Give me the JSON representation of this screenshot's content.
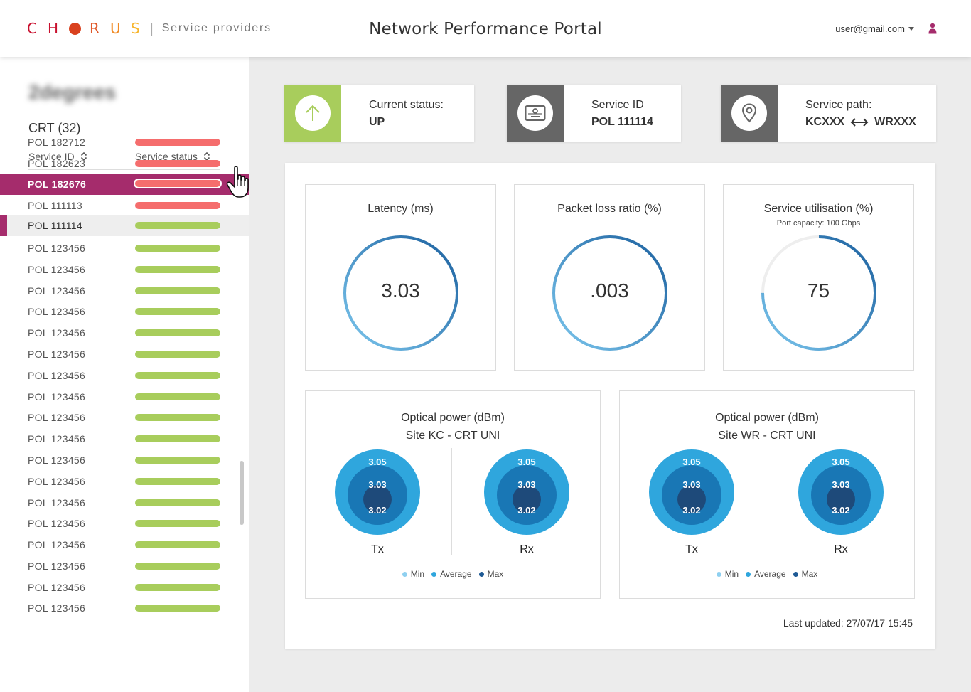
{
  "header": {
    "logo_letters": [
      "C",
      "H",
      "R",
      "U",
      "S"
    ],
    "logo_colors": [
      "#c8102e",
      "#c8102e",
      "#e0592a",
      "#f08a24",
      "#f7b52c",
      "#f7c948"
    ],
    "logo_dot_color": "#d9411e",
    "logo_separator": "|",
    "logo_subtitle": "Service providers",
    "title": "Network Performance Portal",
    "user_email": "user@gmail.com",
    "user_icon": "person-icon"
  },
  "sidebar": {
    "org_name": "2degrees",
    "group_label": "CRT (32)",
    "col_service_id": "Service ID",
    "col_service_status": "Service status",
    "rows": [
      {
        "id": "POL 182712",
        "status": "down"
      },
      {
        "id": "POL 182623",
        "status": "down"
      },
      {
        "id": "POL 182676",
        "status": "down"
      },
      {
        "id": "POL 111113",
        "status": "down"
      },
      {
        "id": "POL 111114",
        "status": "up"
      },
      {
        "id": "POL 123456",
        "status": "up"
      },
      {
        "id": "POL 123456",
        "status": "up"
      },
      {
        "id": "POL 123456",
        "status": "up"
      },
      {
        "id": "POL 123456",
        "status": "up"
      },
      {
        "id": "POL 123456",
        "status": "up"
      },
      {
        "id": "POL 123456",
        "status": "up"
      },
      {
        "id": "POL 123456",
        "status": "up"
      },
      {
        "id": "POL 123456",
        "status": "up"
      },
      {
        "id": "POL 123456",
        "status": "up"
      },
      {
        "id": "POL 123456",
        "status": "up"
      },
      {
        "id": "POL 123456",
        "status": "up"
      },
      {
        "id": "POL 123456",
        "status": "up"
      },
      {
        "id": "POL 123456",
        "status": "up"
      },
      {
        "id": "POL 123456",
        "status": "up"
      },
      {
        "id": "POL 123456",
        "status": "up"
      },
      {
        "id": "POL 123456",
        "status": "up"
      },
      {
        "id": "POL 123456",
        "status": "up"
      },
      {
        "id": "POL 123456",
        "status": "up"
      }
    ],
    "status_colors": {
      "down": "#f56d6d",
      "up": "#a8cd5c"
    },
    "hovered_row": "POL 182676",
    "active_row": "POL 111114"
  },
  "status_cards": {
    "current_status": {
      "label": "Current status:",
      "value": "UP",
      "icon": "arrow-up-icon",
      "color": "#a8cd5c"
    },
    "service_id": {
      "label": "Service ID",
      "value": "POL 111114",
      "icon": "id-card-icon",
      "color": "#666666"
    },
    "service_path": {
      "label": "Service path:",
      "from": "KCXXX",
      "to": "WRXXX",
      "icon": "location-pin-icon",
      "color": "#666666"
    }
  },
  "gauges": [
    {
      "title": "Latency (ms)",
      "subtitle": "",
      "value": "3.03",
      "fill_fraction": 1.0
    },
    {
      "title": "Packet loss ratio (%)",
      "subtitle": "",
      "value": ".003",
      "fill_fraction": 1.0
    },
    {
      "title": "Service utilisation (%)",
      "subtitle": "Port capacity: 100 Gbps",
      "value": "75",
      "fill_fraction": 0.75
    }
  ],
  "optical": [
    {
      "title_line1": "Optical power (dBm)",
      "title_line2": "Site KC - CRT UNI",
      "tx": {
        "label": "Tx",
        "outer": "3.05",
        "middle": "3.03",
        "inner": "3.02"
      },
      "rx": {
        "label": "Rx",
        "outer": "3.05",
        "middle": "3.03",
        "inner": "3.02"
      }
    },
    {
      "title_line1": "Optical power (dBm)",
      "title_line2": "Site WR - CRT UNI",
      "tx": {
        "label": "Tx",
        "outer": "3.05",
        "middle": "3.03",
        "inner": "3.02"
      },
      "rx": {
        "label": "Rx",
        "outer": "3.05",
        "middle": "3.03",
        "inner": "3.02"
      }
    }
  ],
  "legend": [
    {
      "label": "Min",
      "color": "#8fd0f0"
    },
    {
      "label": "Average",
      "color": "#2fa6dd"
    },
    {
      "label": "Max",
      "color": "#1e5a95"
    }
  ],
  "last_updated": "Last updated: 27/07/17  15:45"
}
